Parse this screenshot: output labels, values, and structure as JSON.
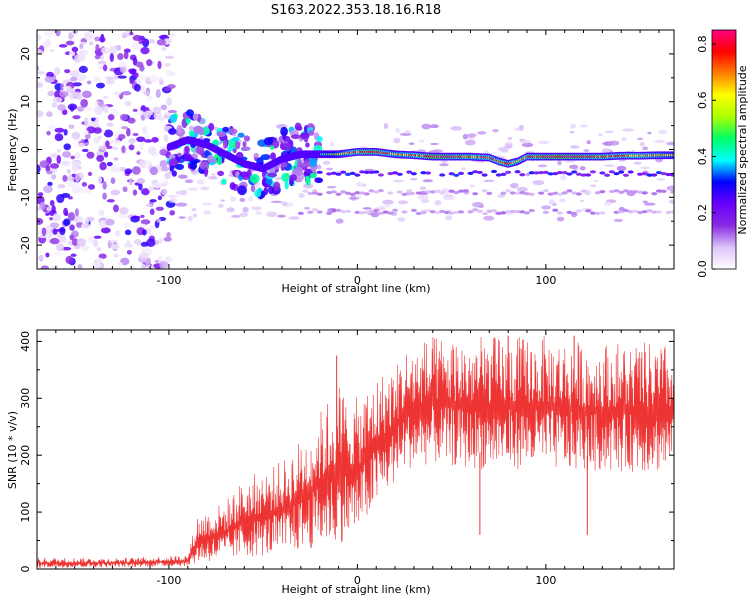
{
  "chart_data": [
    {
      "type": "heatmap",
      "title": "S163.2022.353.18.16.R18",
      "xlabel": "Height of straight line (km)",
      "ylabel": "Frequency (Hz)",
      "xlim": [
        -170,
        168
      ],
      "ylim": [
        -25,
        25
      ],
      "x_ticks": [
        -100,
        0,
        100
      ],
      "y_ticks": [
        -20,
        -10,
        0,
        10,
        20
      ],
      "colorbar": {
        "label": "Normalized spectral amplitude",
        "range": [
          0.0,
          0.85
        ],
        "ticks": [
          0.0,
          0.2,
          0.4,
          0.6,
          0.8
        ],
        "colormap": [
          "#ffffff",
          "#dcc4f8",
          "#8a2be2",
          "#6a00ff",
          "#0000ff",
          "#00ffff",
          "#00ff66",
          "#aaff00",
          "#ffff00",
          "#ff8000",
          "#ff0000",
          "#ff0080"
        ]
      },
      "ridge": {
        "description_free": true,
        "x": [
          -100,
          -90,
          -80,
          -70,
          -60,
          -50,
          -40,
          -30,
          -20,
          -10,
          0,
          10,
          20,
          30,
          40,
          50,
          60,
          70,
          75,
          80,
          85,
          90,
          100,
          110,
          120,
          130,
          140,
          150,
          160,
          168
        ],
        "frequency": [
          0.5,
          2,
          1,
          -1,
          -3,
          -4,
          -2,
          -1,
          -1,
          -1,
          -0.5,
          -0.5,
          -1,
          -1.2,
          -1.5,
          -1.5,
          -1.5,
          -1.7,
          -2.5,
          -3,
          -2.5,
          -1.5,
          -1.5,
          -1.5,
          -1.5,
          -1.5,
          -1.3,
          -1.3,
          -1.2,
          -1.2
        ],
        "amplitude": [
          0.3,
          0.35,
          0.3,
          0.3,
          0.3,
          0.3,
          0.3,
          0.3,
          0.45,
          0.6,
          0.75,
          0.8,
          0.65,
          0.7,
          0.85,
          0.8,
          0.75,
          0.7,
          0.7,
          0.8,
          0.65,
          0.7,
          0.85,
          0.85,
          0.8,
          0.75,
          0.75,
          0.7,
          0.65,
          0.6
        ]
      },
      "side_bands_hz": [
        -5,
        -9,
        -13
      ]
    },
    {
      "type": "line",
      "xlabel": "Height of straight line (km)",
      "ylabel": "SNR (10 * v/v)",
      "xlim": [
        -170,
        168
      ],
      "ylim": [
        0,
        420
      ],
      "x_ticks": [
        -100,
        0,
        100
      ],
      "y_ticks": [
        0,
        100,
        200,
        300,
        400
      ],
      "color": "#ee3333",
      "envelope": {
        "x": [
          -170,
          -120,
          -90,
          -85,
          -70,
          -60,
          -40,
          -25,
          -10,
          0,
          10,
          20,
          25,
          40,
          60,
          80,
          100,
          120,
          140,
          168
        ],
        "low": [
          2,
          3,
          5,
          10,
          15,
          20,
          25,
          35,
          45,
          60,
          110,
          150,
          175,
          185,
          175,
          175,
          175,
          170,
          170,
          170
        ],
        "high": [
          20,
          20,
          25,
          95,
          120,
          160,
          190,
          250,
          330,
          300,
          340,
          360,
          390,
          410,
          410,
          410,
          410,
          400,
          400,
          395
        ]
      },
      "spikes": [
        {
          "x": -11,
          "y": 375
        },
        {
          "x": 65,
          "y": 60
        },
        {
          "x": 122,
          "y": 60
        },
        {
          "x": 80,
          "y": 410
        },
        {
          "x": 115,
          "y": 410
        }
      ]
    }
  ]
}
